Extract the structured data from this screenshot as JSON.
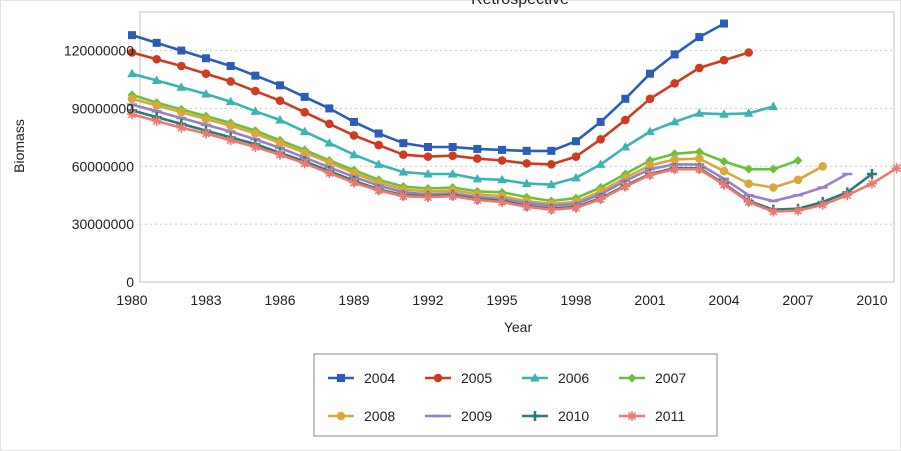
{
  "chart_data": {
    "type": "line",
    "title": "Retrospective",
    "xlabel": "Year",
    "ylabel": "Biomass",
    "xlim": [
      1980,
      2011
    ],
    "ylim": [
      0,
      140000000
    ],
    "x_ticks": [
      1980,
      1983,
      1986,
      1989,
      1992,
      1995,
      1998,
      2001,
      2004,
      2007,
      2010
    ],
    "x_tick_labels": [
      "1980",
      "1983",
      "1986",
      "1989",
      "1992",
      "1995",
      "1998",
      "2001",
      "2004",
      "2007",
      "2010"
    ],
    "y_ticks": [
      0,
      30000000,
      60000000,
      90000000,
      120000000
    ],
    "y_tick_labels": [
      "0",
      "30000000",
      "60000000",
      "90000000",
      "120000000"
    ],
    "grid": "horizontal-dotted",
    "legend_position": "bottom",
    "series": [
      {
        "name": "2004",
        "color": "#2a5cb8",
        "marker": "square",
        "start": 1980,
        "values": [
          128000000,
          124000000,
          120000000,
          116000000,
          112000000,
          107000000,
          102000000,
          96000000,
          90000000,
          83000000,
          77000000,
          72000000,
          70000000,
          70000000,
          69000000,
          68500000,
          68000000,
          68000000,
          73000000,
          83000000,
          95000000,
          108000000,
          118000000,
          127000000,
          134000000
        ]
      },
      {
        "name": "2005",
        "color": "#cf3a22",
        "marker": "circle",
        "start": 1980,
        "values": [
          119000000,
          115500000,
          112000000,
          108000000,
          104000000,
          99000000,
          94000000,
          88000000,
          82000000,
          76000000,
          71000000,
          66000000,
          65000000,
          65500000,
          64000000,
          63000000,
          61500000,
          61000000,
          65000000,
          74000000,
          84000000,
          95000000,
          103000000,
          111000000,
          115000000,
          119000000
        ]
      },
      {
        "name": "2006",
        "color": "#3ab3b3",
        "marker": "triangle",
        "start": 1980,
        "values": [
          108000000,
          104500000,
          101000000,
          97500000,
          93500000,
          88500000,
          84000000,
          78000000,
          72000000,
          66000000,
          61000000,
          57000000,
          56000000,
          56000000,
          53500000,
          53000000,
          51000000,
          50500000,
          54000000,
          61000000,
          70000000,
          78000000,
          83000000,
          87500000,
          87000000,
          87500000,
          91000000
        ]
      },
      {
        "name": "2007",
        "color": "#6ac03c",
        "marker": "diamond",
        "start": 1980,
        "values": [
          97000000,
          93000000,
          89500000,
          86000000,
          82500000,
          78500000,
          73500000,
          68500000,
          63000000,
          58000000,
          53000000,
          49500000,
          48500000,
          49000000,
          47000000,
          46500000,
          44000000,
          42000000,
          43500000,
          49000000,
          56000000,
          63000000,
          66500000,
          67500000,
          62500000,
          58500000,
          58500000,
          63000000
        ]
      },
      {
        "name": "2008",
        "color": "#d8a83a",
        "marker": "circle",
        "start": 1980,
        "values": [
          95000000,
          91500000,
          88000000,
          84500000,
          81000000,
          77000000,
          72000000,
          67000000,
          62000000,
          56500000,
          51500000,
          48000000,
          47000000,
          47500000,
          45500000,
          44500000,
          42000000,
          40500000,
          41500000,
          47000000,
          54000000,
          60500000,
          63500000,
          64000000,
          57500000,
          51000000,
          49000000,
          53000000,
          60000000
        ]
      },
      {
        "name": "2009",
        "color": "#9a7fc6",
        "marker": "dash",
        "start": 1980,
        "values": [
          92000000,
          88500000,
          85000000,
          81500000,
          78000000,
          74000000,
          69500000,
          64500000,
          59500000,
          54500000,
          50000000,
          46500000,
          45500000,
          46000000,
          44000000,
          43000000,
          41000000,
          39500000,
          40500000,
          45500000,
          52500000,
          58500000,
          61000000,
          61000000,
          53500000,
          45000000,
          42000000,
          45000000,
          49000000,
          56000000
        ]
      },
      {
        "name": "2010",
        "color": "#2a7a78",
        "marker": "plus",
        "start": 1980,
        "values": [
          89000000,
          85500000,
          82000000,
          78500000,
          75000000,
          71500000,
          67000000,
          62500000,
          57500000,
          52500000,
          48000000,
          45000000,
          44500000,
          45000000,
          43000000,
          42000000,
          39500000,
          38000000,
          39000000,
          43500000,
          50000000,
          56000000,
          59000000,
          59000000,
          51000000,
          42000000,
          37500000,
          38000000,
          41500000,
          46500000,
          56000000
        ]
      },
      {
        "name": "2011",
        "color": "#ee7770",
        "marker": "star",
        "start": 1980,
        "values": [
          87000000,
          83500000,
          80000000,
          77000000,
          73500000,
          70000000,
          66000000,
          61500000,
          56500000,
          51500000,
          47500000,
          44500000,
          44000000,
          44500000,
          42500000,
          41500000,
          39000000,
          37500000,
          38500000,
          43000000,
          49500000,
          55500000,
          58500000,
          58500000,
          50500000,
          41500000,
          36500000,
          37000000,
          40000000,
          45000000,
          51000000,
          59000000
        ]
      }
    ]
  }
}
